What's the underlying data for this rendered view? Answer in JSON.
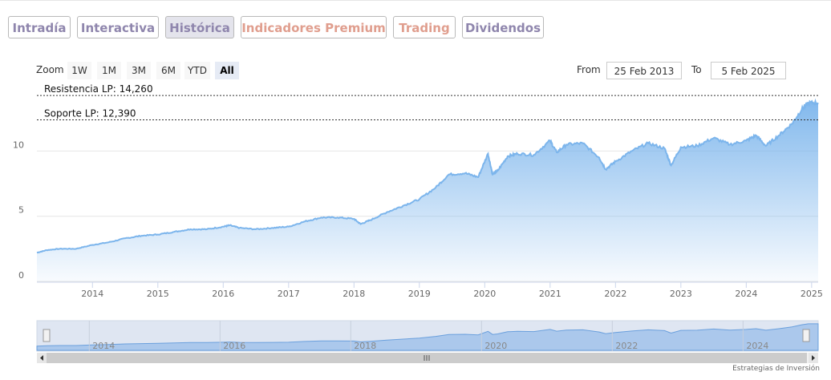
{
  "tabs": [
    {
      "label": "Intradía",
      "color": "#8f86ad",
      "active": false
    },
    {
      "label": "Interactiva",
      "color": "#8f86ad",
      "active": false
    },
    {
      "label": "Histórica",
      "color": "#8f86ad",
      "active": true
    },
    {
      "label": "Indicadores Premium",
      "color": "#e09e8e",
      "active": false
    },
    {
      "label": "Trading",
      "color": "#e09e8e",
      "active": false
    },
    {
      "label": "Dividendos",
      "color": "#8f86ad",
      "active": false
    }
  ],
  "range_selector": {
    "zoom_label": "Zoom",
    "buttons": [
      "1W",
      "1M",
      "3M",
      "6M",
      "YTD",
      "All"
    ],
    "selected": "All",
    "from_label": "From",
    "from_value": "25 Feb 2013",
    "to_label": "To",
    "to_value": "5 Feb 2025"
  },
  "footer": "Estrategias de Inversión",
  "colors": {
    "area": "#7cb5ec",
    "line": "#7cb5ec",
    "accent": "#8f86ad",
    "premium": "#e09e8e"
  },
  "chart_data": {
    "type": "area",
    "x_range": [
      "2013-02-25",
      "2025-02-05"
    ],
    "x_ticks": [
      "2014",
      "2015",
      "2016",
      "2017",
      "2018",
      "2019",
      "2020",
      "2021",
      "2022",
      "2023",
      "2024",
      "2025"
    ],
    "y_ticks": [
      "0",
      "5",
      "10"
    ],
    "ylim": [
      0,
      14.5
    ],
    "grid": true,
    "legend": false,
    "annotations": [
      {
        "label": "Resistencia LP: 14,260",
        "value": 14.26
      },
      {
        "label": "Soporte LP: 12,390",
        "value": 12.39
      }
    ],
    "navigator_ticks": [
      "2014",
      "2016",
      "2018",
      "2020",
      "2022",
      "2024"
    ],
    "series": [
      {
        "x": [
          2013.15,
          2013.3,
          2013.5,
          2013.75,
          2014.0,
          2014.25,
          2014.5,
          2014.75,
          2015.0,
          2015.25,
          2015.5,
          2015.75,
          2016.0,
          2016.1,
          2016.25,
          2016.5,
          2016.75,
          2017.0,
          2017.25,
          2017.5,
          2017.75,
          2018.0,
          2018.1,
          2018.25,
          2018.5,
          2018.75,
          2019.0,
          2019.25,
          2019.45,
          2019.7,
          2019.9,
          2020.05,
          2020.12,
          2020.2,
          2020.35,
          2020.5,
          2020.75,
          2021.0,
          2021.1,
          2021.25,
          2021.5,
          2021.75,
          2021.85,
          2022.0,
          2022.25,
          2022.5,
          2022.75,
          2022.85,
          2023.0,
          2023.25,
          2023.5,
          2023.75,
          2024.0,
          2024.15,
          2024.3,
          2024.5,
          2024.7,
          2024.85,
          2024.95,
          2025.1
        ],
        "values": [
          2.2,
          2.4,
          2.5,
          2.5,
          2.8,
          3.0,
          3.3,
          3.5,
          3.6,
          3.8,
          4.0,
          4.0,
          4.2,
          4.3,
          4.1,
          4.0,
          4.1,
          4.2,
          4.6,
          4.9,
          4.9,
          4.8,
          4.4,
          4.7,
          5.3,
          5.8,
          6.3,
          7.2,
          8.2,
          8.3,
          8.0,
          9.8,
          8.2,
          8.5,
          9.6,
          9.8,
          9.7,
          10.8,
          9.9,
          10.5,
          10.6,
          9.5,
          8.6,
          9.2,
          10.0,
          10.6,
          10.2,
          8.9,
          10.3,
          10.4,
          11.0,
          10.5,
          10.8,
          11.2,
          10.4,
          11.2,
          12.1,
          13.2,
          13.7,
          13.7
        ]
      }
    ]
  }
}
